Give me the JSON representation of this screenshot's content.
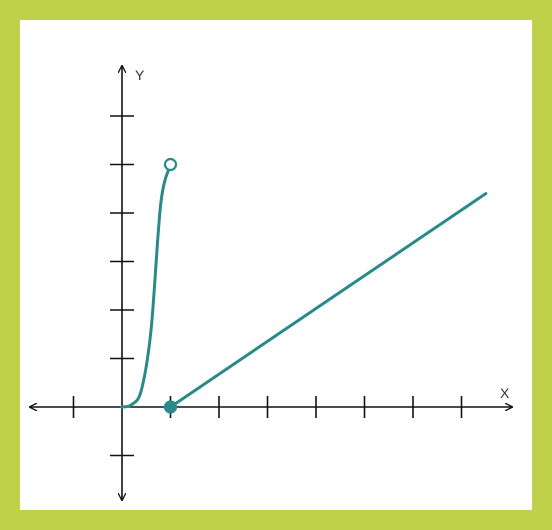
{
  "chart_data": {
    "type": "line",
    "title": "",
    "xlabel": "X",
    "ylabel": "Y",
    "xlim": [
      -1.8,
      8.2
    ],
    "ylim": [
      -1.8,
      6.9
    ],
    "grid": false,
    "axis_arrows": {
      "x": "both",
      "y": "both"
    },
    "x_ticks": [
      -1,
      1,
      2,
      3,
      4,
      5,
      6,
      7
    ],
    "y_ticks": [
      -1,
      1,
      2,
      3,
      4,
      5,
      6
    ],
    "series": [
      {
        "kind": "curve",
        "color": "#2a8a8a",
        "points": [
          [
            0,
            0
          ],
          [
            0.2,
            0.05
          ],
          [
            0.4,
            0.35
          ],
          [
            0.6,
            1.6
          ],
          [
            0.8,
            4.2
          ],
          [
            1,
            5
          ]
        ],
        "end_marker": {
          "x": 1,
          "y": 5,
          "filled": false
        }
      },
      {
        "kind": "line",
        "color": "#2a8a8a",
        "points": [
          [
            1,
            0
          ],
          [
            7.5,
            4.4
          ]
        ],
        "start_marker": {
          "x": 1,
          "y": 0,
          "filled": true
        }
      }
    ]
  },
  "colors": {
    "border": "#bfd14a",
    "background": "#ffffff",
    "axis": "#111111",
    "series": "#2a8a8a"
  }
}
